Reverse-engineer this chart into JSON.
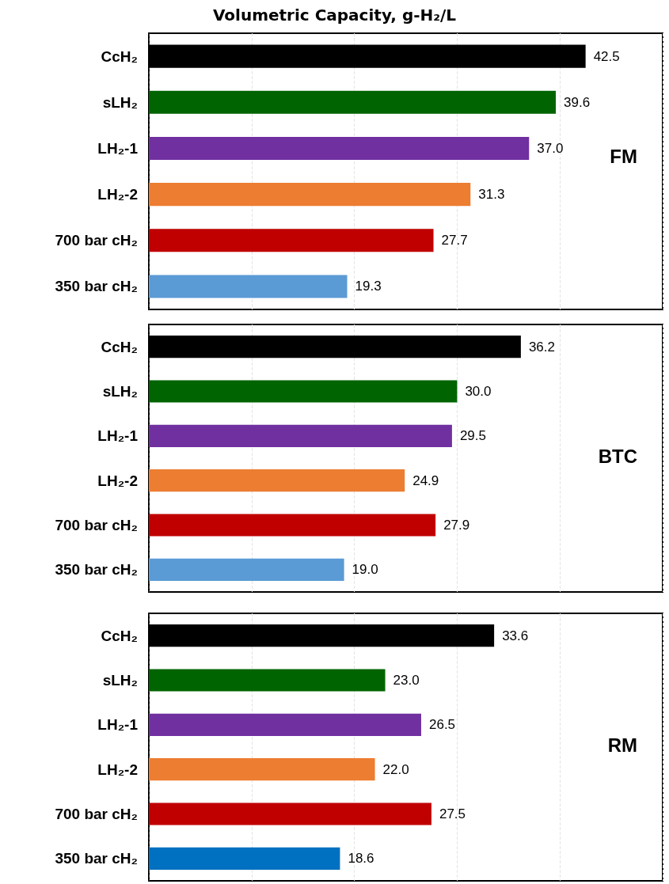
{
  "chart_data": [
    {
      "type": "bar",
      "orientation": "horizontal",
      "title": "Volumetric Capacity, g-H₂/L",
      "categories": [
        "CcH₂",
        "sLH₂",
        "LH₂-1",
        "LH₂-2",
        "700 bar cH₂",
        "350 bar cH₂"
      ],
      "values": [
        42.5,
        39.6,
        37.0,
        31.3,
        27.7,
        19.3
      ],
      "value_labels": [
        "42.5",
        "39.6",
        "37.0",
        "31.3",
        "27.7",
        "19.3"
      ],
      "colors": [
        "#000000",
        "#006400",
        "#7030a0",
        "#ed7d31",
        "#c00000",
        "#5b9bd5"
      ],
      "xlim": [
        0,
        50
      ],
      "xticks": [
        {
          "value": 0,
          "label": null
        },
        {
          "value": 10,
          "label": null
        },
        {
          "value": 20,
          "label": null
        },
        {
          "value": 30,
          "label": null
        },
        {
          "value": 40,
          "label": null
        },
        {
          "value": 50,
          "label": null
        }
      ],
      "grid": "x",
      "tick_labels": "y",
      "annotations": [
        "FM"
      ]
    },
    {
      "type": "bar",
      "orientation": "horizontal",
      "categories": [
        "CcH₂",
        "sLH₂",
        "LH₂-1",
        "LH₂-2",
        "700 bar cH₂",
        "350 bar cH₂"
      ],
      "values": [
        36.2,
        30.0,
        29.5,
        24.9,
        27.9,
        19.0
      ],
      "value_labels": [
        "36.2",
        "30.0",
        "29.5",
        "24.9",
        "27.9",
        "19.0"
      ],
      "colors": [
        "#000000",
        "#006400",
        "#7030a0",
        "#ed7d31",
        "#c00000",
        "#5b9bd5"
      ],
      "xlim": [
        0,
        50
      ],
      "xticks": [
        {
          "value": 0,
          "label": null
        },
        {
          "value": 10,
          "label": null
        },
        {
          "value": 20,
          "label": null
        },
        {
          "value": 30,
          "label": null
        },
        {
          "value": 40,
          "label": null
        },
        {
          "value": 50,
          "label": null
        }
      ],
      "grid": "x",
      "tick_labels": "y",
      "annotations": [
        "BTC"
      ]
    },
    {
      "type": "bar",
      "orientation": "horizontal",
      "categories": [
        "CcH₂",
        "sLH₂",
        "LH₂-1",
        "LH₂-2",
        "700 bar cH₂",
        "350 bar cH₂"
      ],
      "values": [
        33.6,
        23.0,
        26.5,
        22.0,
        27.5,
        18.6
      ],
      "value_labels": [
        "33.6",
        "23.0",
        "26.5",
        "22.0",
        "27.5",
        "18.6"
      ],
      "colors": [
        "#000000",
        "#006400",
        "#7030a0",
        "#ed7d31",
        "#c00000",
        "#0070c0"
      ],
      "xlim": [
        0,
        50
      ],
      "xticks": [
        {
          "value": 0,
          "label": null
        },
        {
          "value": 10,
          "label": null
        },
        {
          "value": 20,
          "label": null
        },
        {
          "value": 30,
          "label": null
        },
        {
          "value": 40,
          "label": null
        },
        {
          "value": 50,
          "label": null
        }
      ],
      "grid": "x",
      "tick_labels": "y",
      "annotations": [
        "RM"
      ]
    }
  ]
}
